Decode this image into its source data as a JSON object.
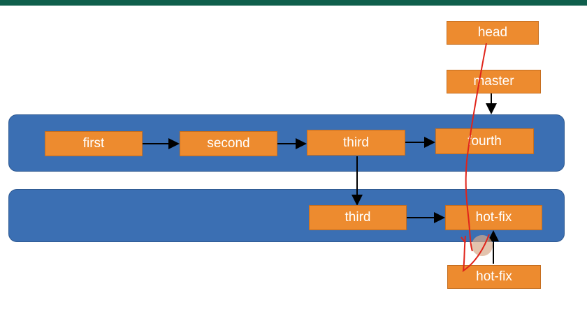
{
  "diagram": {
    "nodes": {
      "head": "head",
      "master": "master",
      "first": "first",
      "second": "second",
      "third_main": "third",
      "fourth": "fourth",
      "third_branch": "third",
      "hotfix_branch": "hot-fix",
      "hotfix_pointer": "hot-fix"
    },
    "lanes": [
      "main-branch",
      "hot-fix-branch"
    ]
  },
  "colors": {
    "accent_bar": "#0f5f4c",
    "lane": "#3b6fb3",
    "node": "#ed8b2f",
    "annotation": "#e0241b"
  }
}
